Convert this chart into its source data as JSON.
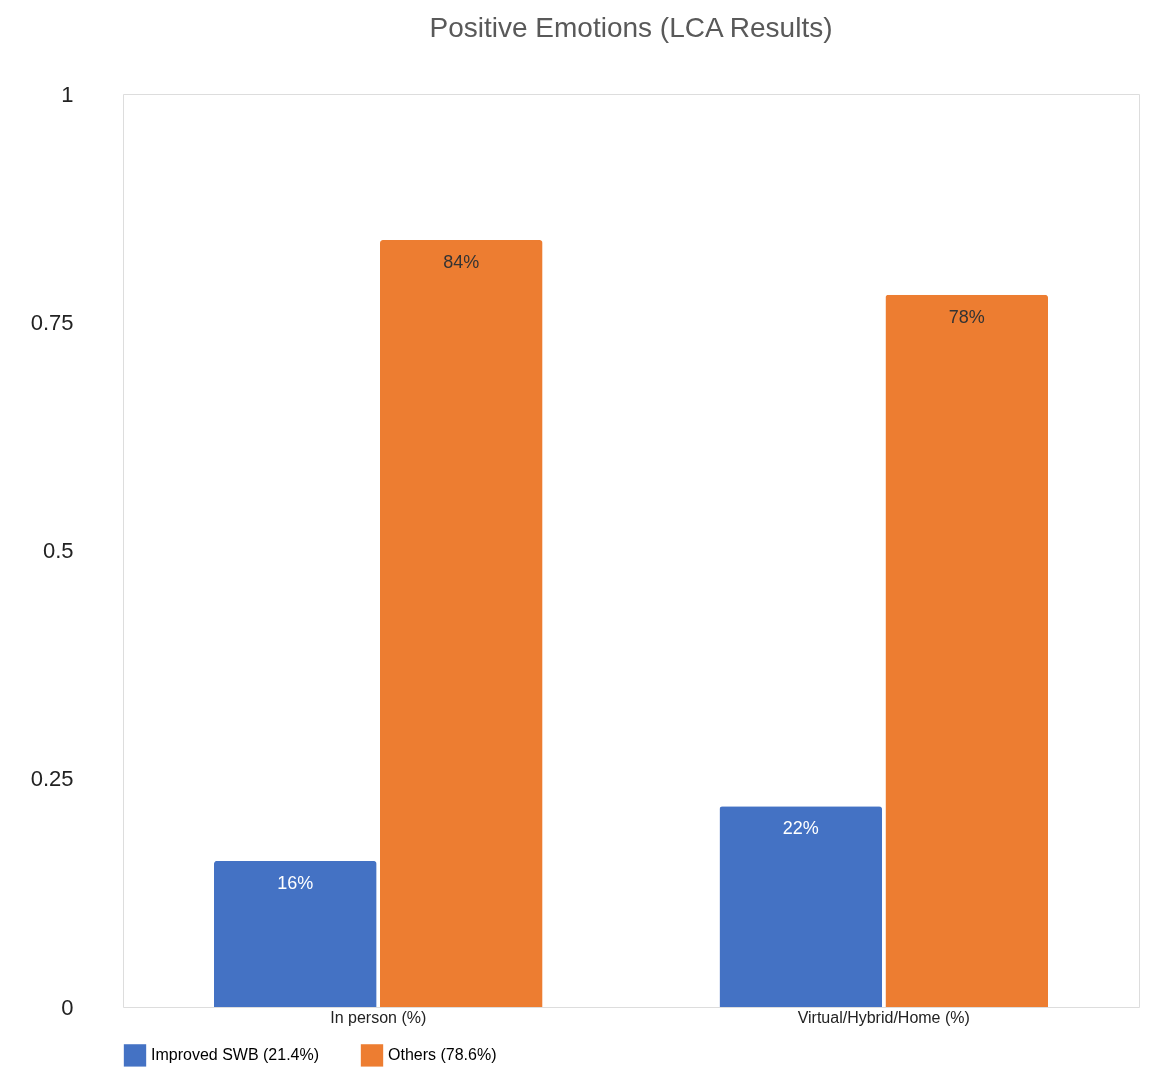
{
  "chart_data": {
    "type": "bar",
    "title": "Positive Emotions (LCA Results)",
    "categories": [
      "In person (%)",
      "Virtual/Hybrid/Home (%)"
    ],
    "series": [
      {
        "name": "Improved SWB (21.4%)",
        "color": "#4472c4",
        "values": [
          0.16,
          0.22
        ],
        "value_labels": [
          "16%",
          "22%"
        ]
      },
      {
        "name": "Others (78.6%)",
        "color": "#ed7d31",
        "values": [
          0.84,
          0.78
        ],
        "value_labels": [
          "84%",
          "78%"
        ]
      }
    ],
    "ylim": [
      0,
      1
    ],
    "yticks": [
      0,
      0.25,
      0.5,
      0.75,
      1
    ],
    "grid": false,
    "legend": "bottom"
  }
}
